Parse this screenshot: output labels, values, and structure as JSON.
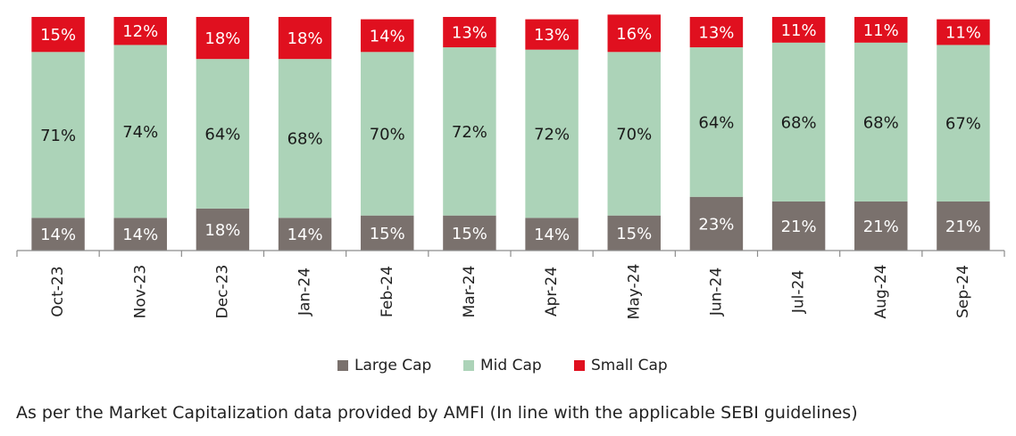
{
  "chart_data": {
    "type": "bar",
    "stacked": true,
    "categories": [
      "Oct-23",
      "Nov-23",
      "Dec-23",
      "Jan-24",
      "Feb-24",
      "Mar-24",
      "Apr-24",
      "May-24",
      "Jun-24",
      "Jul-24",
      "Aug-24",
      "Sep-24"
    ],
    "series": [
      {
        "name": "Large Cap",
        "color": "#7a716d",
        "label_color": "#ffffff",
        "values": [
          14,
          14,
          18,
          14,
          15,
          15,
          14,
          15,
          23,
          21,
          21,
          21
        ]
      },
      {
        "name": "Mid Cap",
        "color": "#acd3b8",
        "label_color": "#1a1a1a",
        "values": [
          71,
          74,
          64,
          68,
          70,
          72,
          72,
          70,
          64,
          68,
          68,
          67
        ]
      },
      {
        "name": "Small Cap",
        "color": "#e0101f",
        "label_color": "#ffffff",
        "values": [
          15,
          12,
          18,
          18,
          14,
          13,
          13,
          16,
          13,
          11,
          11,
          11
        ]
      }
    ],
    "value_suffix": "%",
    "ylim": [
      0,
      100
    ],
    "grid": false,
    "legend_position": "bottom",
    "x_tick_rotation": -90
  },
  "footnote": "As per the Market Capitalization data provided by AMFI (In line with the applicable SEBI guidelines)"
}
